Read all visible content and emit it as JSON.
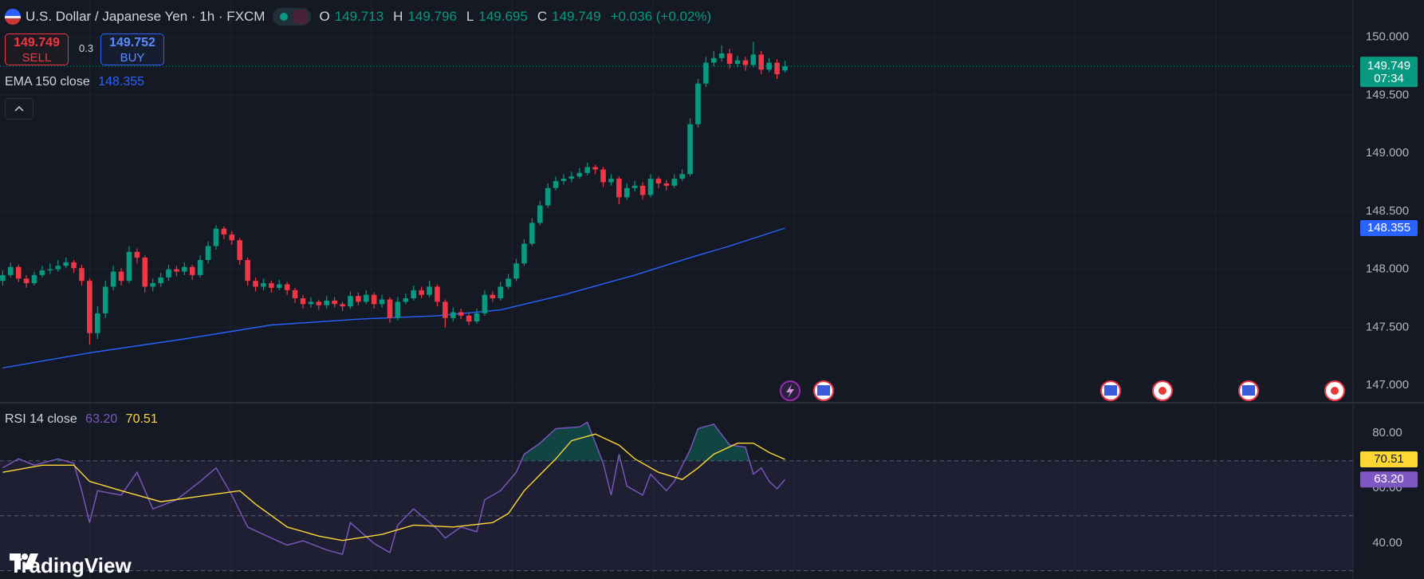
{
  "header": {
    "symbol": "U.S. Dollar / Japanese Yen · 1h · FXCM",
    "open_label": "O",
    "high_label": "H",
    "low_label": "L",
    "close_label": "C",
    "change": "+0.036 (+0.02%)",
    "sell": "SELL",
    "spread": 0.3,
    "buy_price": 149.752,
    "buy": "BUY",
    "logo": "TradingView"
  },
  "chart_data": [
    {
      "type": "candlestick",
      "up_color": "#089981",
      "down_color": "#f23645",
      "grid": true,
      "countdown": "07:34",
      "ylim": [
        146.85,
        150.32
      ],
      "yticks": [
        {
          "value": 147,
          "label": "147.000"
        },
        {
          "value": 147.5,
          "label": "147.500"
        },
        {
          "value": 148,
          "label": "148.000"
        },
        {
          "value": 148.5,
          "label": "148.500"
        },
        {
          "value": 149,
          "label": "149.000"
        },
        {
          "value": 149.5,
          "label": "149.500"
        },
        {
          "value": 150,
          "label": "150.000"
        }
      ],
      "ohlc": [
        [
          147.9,
          147.99,
          147.86,
          147.95
        ],
        [
          147.95,
          148.06,
          147.93,
          148.02
        ],
        [
          148.02,
          148.04,
          147.89,
          147.92
        ],
        [
          147.92,
          147.95,
          147.84,
          147.88
        ],
        [
          147.88,
          147.98,
          147.86,
          147.95
        ],
        [
          147.95,
          148.03,
          147.93,
          147.99
        ],
        [
          147.99,
          148.05,
          147.96,
          148.0
        ],
        [
          148.0,
          148.08,
          147.98,
          148.03
        ],
        [
          148.03,
          148.1,
          148.01,
          148.06
        ],
        [
          148.06,
          148.08,
          147.97,
          148.01
        ],
        [
          148.01,
          148.04,
          147.86,
          147.9
        ],
        [
          147.9,
          147.92,
          147.35,
          147.45
        ],
        [
          147.45,
          147.68,
          147.4,
          147.62
        ],
        [
          147.62,
          147.9,
          147.58,
          147.85
        ],
        [
          147.85,
          148.03,
          147.82,
          147.98
        ],
        [
          147.98,
          148.01,
          147.86,
          147.9
        ],
        [
          147.9,
          148.2,
          147.88,
          148.15
        ],
        [
          148.15,
          148.18,
          148.05,
          148.1
        ],
        [
          148.1,
          148.12,
          147.8,
          147.85
        ],
        [
          147.85,
          147.92,
          147.81,
          147.88
        ],
        [
          147.88,
          147.97,
          147.85,
          147.93
        ],
        [
          147.93,
          148.04,
          147.9,
          148.0
        ],
        [
          148.0,
          148.03,
          147.94,
          147.98
        ],
        [
          147.98,
          148.06,
          147.95,
          148.02
        ],
        [
          148.02,
          148.04,
          147.91,
          147.95
        ],
        [
          147.95,
          148.12,
          147.93,
          148.08
        ],
        [
          148.08,
          148.24,
          148.05,
          148.2
        ],
        [
          148.2,
          148.38,
          148.17,
          148.35
        ],
        [
          148.35,
          148.37,
          148.26,
          148.3
        ],
        [
          148.3,
          148.33,
          148.21,
          148.25
        ],
        [
          148.25,
          148.27,
          148.04,
          148.08
        ],
        [
          148.08,
          148.1,
          147.86,
          147.9
        ],
        [
          147.9,
          147.93,
          147.81,
          147.85
        ],
        [
          147.85,
          147.92,
          147.82,
          147.88
        ],
        [
          147.88,
          147.9,
          147.8,
          147.84
        ],
        [
          147.84,
          147.91,
          147.82,
          147.87
        ],
        [
          147.87,
          147.89,
          147.78,
          147.82
        ],
        [
          147.82,
          147.84,
          147.71,
          147.75
        ],
        [
          147.75,
          147.78,
          147.66,
          147.7
        ],
        [
          147.7,
          147.76,
          147.67,
          147.72
        ],
        [
          147.72,
          147.74,
          147.65,
          147.69
        ],
        [
          147.69,
          147.77,
          147.66,
          147.73
        ],
        [
          147.73,
          147.76,
          147.67,
          147.7
        ],
        [
          147.7,
          147.72,
          147.64,
          147.68
        ],
        [
          147.68,
          147.81,
          147.66,
          147.77
        ],
        [
          147.77,
          147.8,
          147.69,
          147.72
        ],
        [
          147.72,
          147.82,
          147.7,
          147.78
        ],
        [
          147.78,
          147.8,
          147.66,
          147.7
        ],
        [
          147.7,
          147.78,
          147.67,
          147.74
        ],
        [
          147.74,
          147.76,
          147.54,
          147.58
        ],
        [
          147.58,
          147.76,
          147.56,
          147.72
        ],
        [
          147.72,
          147.79,
          147.7,
          147.75
        ],
        [
          147.75,
          147.86,
          147.73,
          147.82
        ],
        [
          147.82,
          147.85,
          147.75,
          147.78
        ],
        [
          147.78,
          147.9,
          147.76,
          147.85
        ],
        [
          147.85,
          147.87,
          147.68,
          147.72
        ],
        [
          147.72,
          147.74,
          147.5,
          147.58
        ],
        [
          147.58,
          147.67,
          147.55,
          147.63
        ],
        [
          147.63,
          147.66,
          147.57,
          147.6
        ],
        [
          147.6,
          147.62,
          147.52,
          147.55
        ],
        [
          147.55,
          147.66,
          147.53,
          147.62
        ],
        [
          147.62,
          147.82,
          147.6,
          147.78
        ],
        [
          147.78,
          147.81,
          147.72,
          147.75
        ],
        [
          147.75,
          147.89,
          147.73,
          147.85
        ],
        [
          147.85,
          147.96,
          147.83,
          147.92
        ],
        [
          147.92,
          148.09,
          147.9,
          148.05
        ],
        [
          148.05,
          148.26,
          148.03,
          148.22
        ],
        [
          148.22,
          148.44,
          148.2,
          148.4
        ],
        [
          148.4,
          148.59,
          148.38,
          148.55
        ],
        [
          148.55,
          148.74,
          148.53,
          148.7
        ],
        [
          148.7,
          148.8,
          148.68,
          148.76
        ],
        [
          148.76,
          148.82,
          148.73,
          148.78
        ],
        [
          148.78,
          148.84,
          148.75,
          148.8
        ],
        [
          148.8,
          148.87,
          148.78,
          148.83
        ],
        [
          148.83,
          148.92,
          148.81,
          148.88
        ],
        [
          148.88,
          148.9,
          148.82,
          148.86
        ],
        [
          148.86,
          148.88,
          148.71,
          148.75
        ],
        [
          148.75,
          148.82,
          148.72,
          148.78
        ],
        [
          148.78,
          148.8,
          148.56,
          148.62
        ],
        [
          148.62,
          148.74,
          148.6,
          148.7
        ],
        [
          148.7,
          148.76,
          148.67,
          148.72
        ],
        [
          148.72,
          148.75,
          148.6,
          148.64
        ],
        [
          148.64,
          148.82,
          148.62,
          148.78
        ],
        [
          148.78,
          148.8,
          148.7,
          148.74
        ],
        [
          148.74,
          148.77,
          148.68,
          148.72
        ],
        [
          148.72,
          148.82,
          148.7,
          148.78
        ],
        [
          148.78,
          148.86,
          148.76,
          148.82
        ],
        [
          148.82,
          149.3,
          148.8,
          149.25
        ],
        [
          149.25,
          149.64,
          149.22,
          149.6
        ],
        [
          149.6,
          149.83,
          149.57,
          149.78
        ],
        [
          149.78,
          149.88,
          149.75,
          149.82
        ],
        [
          149.82,
          149.93,
          149.79,
          149.86
        ],
        [
          149.86,
          149.9,
          149.73,
          149.77
        ],
        [
          149.77,
          149.84,
          149.74,
          149.8
        ],
        [
          149.8,
          149.83,
          149.71,
          149.76
        ],
        [
          149.76,
          149.96,
          149.74,
          149.85
        ],
        [
          149.85,
          149.88,
          149.68,
          149.72
        ],
        [
          149.72,
          149.82,
          149.7,
          149.78
        ],
        [
          149.78,
          149.81,
          149.64,
          149.68
        ],
        [
          149.713,
          149.796,
          149.695,
          149.749
        ]
      ],
      "overlays": [
        {
          "name": "EMA 150 close",
          "color": "#2962ff",
          "x": [
            0,
            11,
            23,
            34,
            45,
            55,
            63,
            71,
            80,
            87,
            92,
            99
          ],
          "values": [
            147.15,
            147.28,
            147.4,
            147.52,
            147.57,
            147.6,
            147.65,
            147.78,
            147.95,
            148.1,
            148.2,
            148.355
          ]
        }
      ]
    },
    {
      "type": "line",
      "title": "RSI 14 close",
      "ylim": [
        27,
        91.1
      ],
      "band_color": "#7e57c2",
      "overbought_color": "#089981",
      "yticks": [
        {
          "value": 40,
          "label": "40.00"
        },
        {
          "value": 60,
          "label": "60.00"
        },
        {
          "value": 80,
          "label": "80.00"
        }
      ],
      "bands": [
        70,
        50,
        30
      ],
      "series": [
        {
          "color": "#7e57c2",
          "value_label": "63.20",
          "x": [
            0,
            2,
            4,
            7,
            9,
            10,
            11,
            12,
            15,
            17,
            19,
            22,
            25,
            27,
            29,
            31,
            33,
            36,
            38,
            41,
            43,
            44,
            47,
            49,
            50,
            52,
            55,
            56,
            58,
            60,
            61,
            63,
            65,
            66,
            68,
            70,
            73,
            74,
            76,
            77,
            78,
            79,
            81,
            82,
            84,
            85,
            87,
            88,
            90,
            92,
            94,
            95,
            96,
            97,
            98,
            99
          ],
          "values": [
            67.4,
            70.7,
            68.4,
            70.7,
            69.1,
            59.1,
            47.5,
            59.1,
            57.5,
            65.8,
            52.5,
            55.8,
            62.5,
            67.4,
            57.5,
            45.9,
            43.2,
            39.3,
            40.9,
            37.6,
            36.0,
            47.5,
            39.9,
            36.6,
            46.6,
            52.5,
            45.2,
            41.9,
            45.9,
            44.2,
            55.8,
            59.1,
            65.8,
            72.4,
            76.4,
            81.7,
            82.3,
            84.0,
            69.1,
            57.5,
            72.4,
            60.8,
            57.5,
            65.1,
            59.1,
            62.5,
            74.0,
            81.7,
            83.3,
            75.7,
            75.0,
            65.1,
            67.4,
            62.5,
            59.8,
            63.2
          ]
        },
        {
          "color": "#fdd835",
          "x": [
            0,
            5,
            9,
            11,
            15,
            20,
            26,
            30,
            32,
            36,
            40,
            43,
            48,
            52,
            57,
            62,
            64,
            66,
            70,
            72,
            75,
            78,
            80,
            83,
            86,
            88,
            90,
            93,
            95,
            97,
            99
          ],
          "values": [
            65.8,
            68.4,
            68.4,
            62.5,
            59.1,
            55.1,
            57.5,
            59.1,
            54.2,
            45.9,
            42.6,
            41.0,
            43.2,
            46.6,
            45.9,
            47.5,
            50.8,
            59.1,
            70.7,
            77.3,
            79.7,
            75.7,
            70.7,
            65.8,
            63.2,
            67.4,
            72.4,
            76.4,
            76.4,
            73.0,
            70.51
          ]
        }
      ]
    }
  ]
}
